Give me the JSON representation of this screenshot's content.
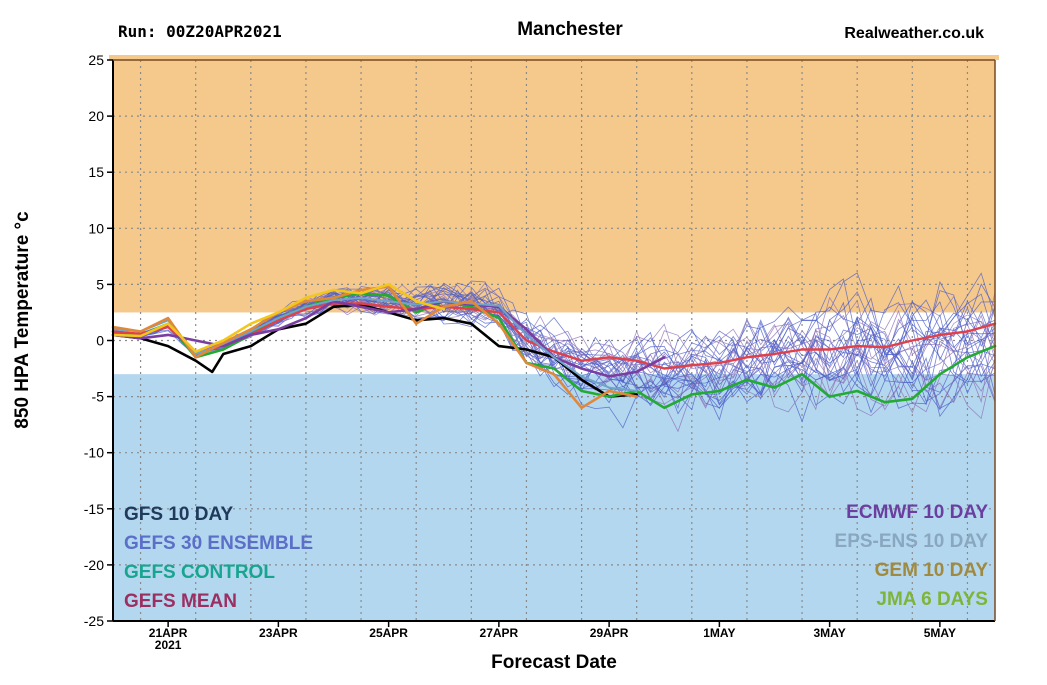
{
  "header": {
    "run": "Run:  00Z20APR2021",
    "location": "Manchester",
    "site": "Realweather.co.uk"
  },
  "chart_data": {
    "type": "line",
    "ylabel": "850 HPA Temperature °c",
    "xlabel": "Forecast Date",
    "ylim": [
      -25,
      25
    ],
    "y_ticks": [
      25,
      20,
      15,
      10,
      5,
      0,
      -5,
      -10,
      -15,
      -20,
      -25
    ],
    "xlim": [
      0,
      16
    ],
    "x_ticks": [
      {
        "x": 1,
        "label": "21APR",
        "sub": "2021"
      },
      {
        "x": 3,
        "label": "23APR"
      },
      {
        "x": 5,
        "label": "25APR"
      },
      {
        "x": 7,
        "label": "27APR"
      },
      {
        "x": 9,
        "label": "29APR"
      },
      {
        "x": 11,
        "label": "1MAY"
      },
      {
        "x": 13,
        "label": "3MAY"
      },
      {
        "x": 15,
        "label": "5MAY"
      }
    ],
    "grid": true,
    "bands": [
      {
        "from": 2.5,
        "to": 25,
        "color": "#f5c88c"
      },
      {
        "from": -25,
        "to": -3,
        "color": "#b3d7ee"
      }
    ],
    "legend_left": [
      {
        "label": "GFS 10 DAY",
        "color": "#1f3a5a"
      },
      {
        "label": "GEFS 30 ENSEMBLE",
        "color": "#5b6fc8"
      },
      {
        "label": "GEFS CONTROL",
        "color": "#18a58f"
      },
      {
        "label": "GEFS MEAN",
        "color": "#9b2f62"
      }
    ],
    "legend_right": [
      {
        "label": "ECMWF 10 DAY",
        "color": "#6a3fa0"
      },
      {
        "label": "EPS-ENS 10 DAY",
        "color": "#8aa7c0"
      },
      {
        "label": "GEM 10 DAY",
        "color": "#a08a40"
      },
      {
        "label": "JMA 6 DAYS",
        "color": "#7fb43a"
      }
    ],
    "series": [
      {
        "name": "GFS 10 DAY",
        "color": "#000000",
        "width": 2.6,
        "x": [
          0,
          0.5,
          1,
          1.5,
          1.8,
          2,
          2.5,
          3,
          3.5,
          4,
          4.5,
          5,
          5.5,
          6,
          6.5,
          7,
          7.5,
          8,
          8.5,
          9,
          9.5
        ],
        "y": [
          0.5,
          0.2,
          -0.5,
          -1.8,
          -2.8,
          -1.2,
          -0.5,
          1,
          1.5,
          3,
          3.2,
          2.5,
          1.8,
          2,
          1.5,
          -0.5,
          -0.8,
          -1.5,
          -3.5,
          -5,
          -4.8
        ]
      },
      {
        "name": "GEFS CONTROL",
        "color": "#22aa33",
        "width": 2.6,
        "x": [
          0,
          0.5,
          1,
          1.5,
          2,
          2.5,
          3,
          3.5,
          4,
          4.5,
          5,
          5.5,
          6,
          6.5,
          7,
          7.5,
          8,
          8.5,
          9,
          9.5,
          10,
          10.5,
          11,
          11.5,
          12,
          12.5,
          13,
          13.5,
          14,
          14.5,
          15,
          15.5,
          16
        ],
        "y": [
          0.8,
          0.5,
          1.5,
          -1.5,
          -0.8,
          0.5,
          2,
          3,
          3.8,
          4.2,
          4,
          2.5,
          3.5,
          3,
          2,
          -2,
          -2.5,
          -4.5,
          -5,
          -4.5,
          -6,
          -4.8,
          -4.5,
          -3.5,
          -4.2,
          -3,
          -5,
          -4.5,
          -5.5,
          -5.2,
          -3,
          -1.5,
          -0.5
        ]
      },
      {
        "name": "GEFS MEAN",
        "color": "#e0404a",
        "width": 2.4,
        "x": [
          0,
          0.5,
          1,
          1.5,
          2,
          2.5,
          3,
          3.5,
          4,
          4.5,
          5,
          5.5,
          6,
          6.5,
          7,
          7.5,
          8,
          8.5,
          9,
          9.5,
          10,
          10.5,
          11,
          11.5,
          12,
          12.5,
          13,
          13.5,
          14,
          14.5,
          15,
          15.5,
          16
        ],
        "y": [
          0.8,
          0.6,
          1.2,
          -1,
          -0.5,
          0.5,
          1.8,
          2.8,
          3.3,
          3.3,
          3,
          2.8,
          3,
          2.8,
          2.5,
          0,
          -1,
          -1.8,
          -1.5,
          -1.8,
          -2.5,
          -2.2,
          -2,
          -1.5,
          -1.2,
          -0.8,
          -0.8,
          -0.5,
          -0.6,
          0,
          0.5,
          0.8,
          1.5
        ]
      },
      {
        "name": "ECMWF 10 DAY",
        "color": "#7a3da0",
        "width": 2.6,
        "x": [
          0,
          0.5,
          1,
          1.5,
          2,
          2.5,
          3,
          3.5,
          4,
          4.5,
          5,
          5.5,
          6,
          6.5,
          7,
          7.5,
          8,
          8.5,
          9,
          9.5,
          10
        ],
        "y": [
          0.5,
          0.2,
          0.5,
          0,
          -0.5,
          0.5,
          1,
          2,
          3.5,
          3,
          2.5,
          2.8,
          3.5,
          3.2,
          3,
          1,
          -1.5,
          -2.5,
          -3.2,
          -2.8,
          -1.5
        ]
      },
      {
        "name": "EPS-ENS 10 DAY",
        "color": "#6fa3c8",
        "width": 2,
        "x": [
          0,
          0.5,
          1,
          1.5,
          2,
          2.5,
          3,
          3.5,
          4,
          4.5,
          5,
          5.5,
          6,
          6.5,
          7,
          7.5,
          8,
          8.5,
          9,
          9.5
        ],
        "y": [
          1,
          0.8,
          1.8,
          -1.2,
          -0.3,
          0.8,
          2,
          3,
          3.6,
          3.8,
          3.5,
          3.2,
          3.5,
          3.3,
          3.1,
          0.5,
          -1.5,
          -3.2,
          -4.2,
          -4.5
        ]
      },
      {
        "name": "GEM 10 DAY",
        "color": "#e0883a",
        "width": 2.6,
        "x": [
          0,
          0.5,
          1,
          1.5,
          2,
          2.5,
          3,
          3.5,
          4,
          4.5,
          5,
          5.5,
          6,
          6.5,
          7,
          7.5,
          8,
          8.5,
          9,
          9.5
        ],
        "y": [
          1.2,
          0.8,
          2,
          -1.5,
          -0.2,
          1,
          2.5,
          3.5,
          3.8,
          4.5,
          4.8,
          1.5,
          3,
          3.5,
          1.5,
          -2,
          -3,
          -6,
          -4.5,
          -5
        ]
      },
      {
        "name": "JMA 6 DAYS",
        "color": "#f2c61a",
        "width": 2.6,
        "x": [
          0,
          0.5,
          1,
          1.5,
          2,
          2.5,
          3,
          3.5,
          4,
          4.5,
          5,
          5.5,
          6
        ],
        "y": [
          0.5,
          0.4,
          1.5,
          -1,
          0,
          1.5,
          2.5,
          3.8,
          4.5,
          4.2,
          5,
          3.5,
          2.8
        ]
      }
    ]
  }
}
